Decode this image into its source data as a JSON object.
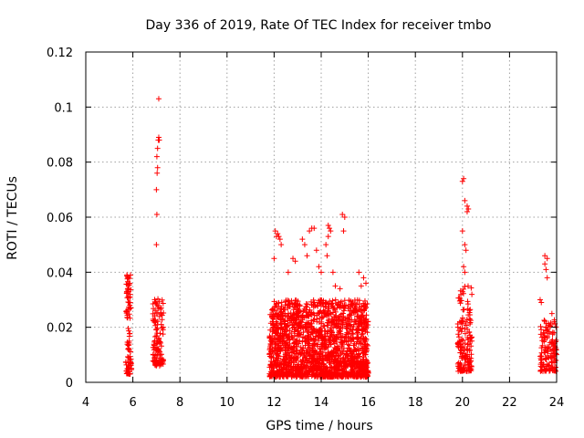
{
  "chart_data": {
    "type": "scatter",
    "title": "Day 336 of 2019, Rate Of TEC Index for receiver tmbo",
    "xlabel": "GPS time / hours",
    "ylabel": "ROTI / TECUs",
    "xlim": [
      4,
      24
    ],
    "ylim": [
      0,
      0.12
    ],
    "xticks": [
      4,
      6,
      8,
      10,
      12,
      14,
      16,
      18,
      20,
      22,
      24
    ],
    "yticks": [
      0,
      0.02,
      0.04,
      0.06,
      0.08,
      0.1,
      0.12
    ],
    "ytick_labels": [
      "0",
      "0.02",
      "0.04",
      "0.06",
      "0.08",
      "0.1",
      "0.12"
    ],
    "grid": true,
    "marker": "+",
    "color": "#ff0000",
    "clusters": [
      {
        "x": [
          5.7,
          5.95
        ],
        "y": [
          0.003,
          0.039
        ],
        "count": 90
      },
      {
        "x": [
          6.85,
          7.3
        ],
        "y": [
          0.006,
          0.031
        ],
        "count": 120
      },
      {
        "x": [
          11.8,
          16.0
        ],
        "y": [
          0.002,
          0.03
        ],
        "count": 1800
      },
      {
        "x": [
          19.8,
          20.4
        ],
        "y": [
          0.004,
          0.035
        ],
        "count": 160
      },
      {
        "x": [
          23.3,
          24.0
        ],
        "y": [
          0.004,
          0.023
        ],
        "count": 140
      }
    ],
    "points": [
      [
        5.75,
        0.039
      ],
      [
        5.8,
        0.038
      ],
      [
        5.85,
        0.036
      ],
      [
        5.78,
        0.034
      ],
      [
        5.82,
        0.033
      ],
      [
        5.9,
        0.039
      ],
      [
        7.0,
        0.05
      ],
      [
        7.02,
        0.061
      ],
      [
        7.0,
        0.07
      ],
      [
        7.03,
        0.076
      ],
      [
        7.05,
        0.078
      ],
      [
        7.02,
        0.082
      ],
      [
        7.05,
        0.085
      ],
      [
        7.08,
        0.088
      ],
      [
        7.1,
        0.089
      ],
      [
        7.12,
        0.088
      ],
      [
        7.1,
        0.103
      ],
      [
        12.0,
        0.045
      ],
      [
        12.1,
        0.053
      ],
      [
        12.15,
        0.054
      ],
      [
        12.2,
        0.053
      ],
      [
        12.25,
        0.052
      ],
      [
        12.3,
        0.05
      ],
      [
        12.05,
        0.055
      ],
      [
        12.6,
        0.04
      ],
      [
        12.8,
        0.045
      ],
      [
        12.9,
        0.044
      ],
      [
        13.2,
        0.052
      ],
      [
        13.3,
        0.05
      ],
      [
        13.5,
        0.055
      ],
      [
        13.6,
        0.056
      ],
      [
        13.7,
        0.056
      ],
      [
        13.4,
        0.046
      ],
      [
        13.8,
        0.048
      ],
      [
        13.9,
        0.042
      ],
      [
        14.0,
        0.04
      ],
      [
        14.2,
        0.05
      ],
      [
        14.3,
        0.057
      ],
      [
        14.35,
        0.056
      ],
      [
        14.4,
        0.055
      ],
      [
        14.3,
        0.053
      ],
      [
        14.25,
        0.046
      ],
      [
        14.5,
        0.04
      ],
      [
        14.6,
        0.035
      ],
      [
        14.8,
        0.034
      ],
      [
        14.9,
        0.061
      ],
      [
        15.0,
        0.06
      ],
      [
        14.95,
        0.055
      ],
      [
        15.6,
        0.04
      ],
      [
        15.8,
        0.038
      ],
      [
        15.9,
        0.036
      ],
      [
        15.7,
        0.035
      ],
      [
        20.0,
        0.073
      ],
      [
        20.05,
        0.074
      ],
      [
        20.1,
        0.066
      ],
      [
        20.2,
        0.064
      ],
      [
        20.25,
        0.063
      ],
      [
        20.2,
        0.062
      ],
      [
        20.0,
        0.055
      ],
      [
        20.1,
        0.05
      ],
      [
        20.15,
        0.048
      ],
      [
        20.05,
        0.042
      ],
      [
        20.1,
        0.04
      ],
      [
        23.5,
        0.046
      ],
      [
        23.6,
        0.045
      ],
      [
        23.5,
        0.043
      ],
      [
        23.55,
        0.041
      ],
      [
        23.6,
        0.038
      ],
      [
        23.3,
        0.03
      ],
      [
        23.35,
        0.029
      ],
      [
        23.8,
        0.025
      ],
      [
        23.9,
        0.022
      ]
    ]
  }
}
